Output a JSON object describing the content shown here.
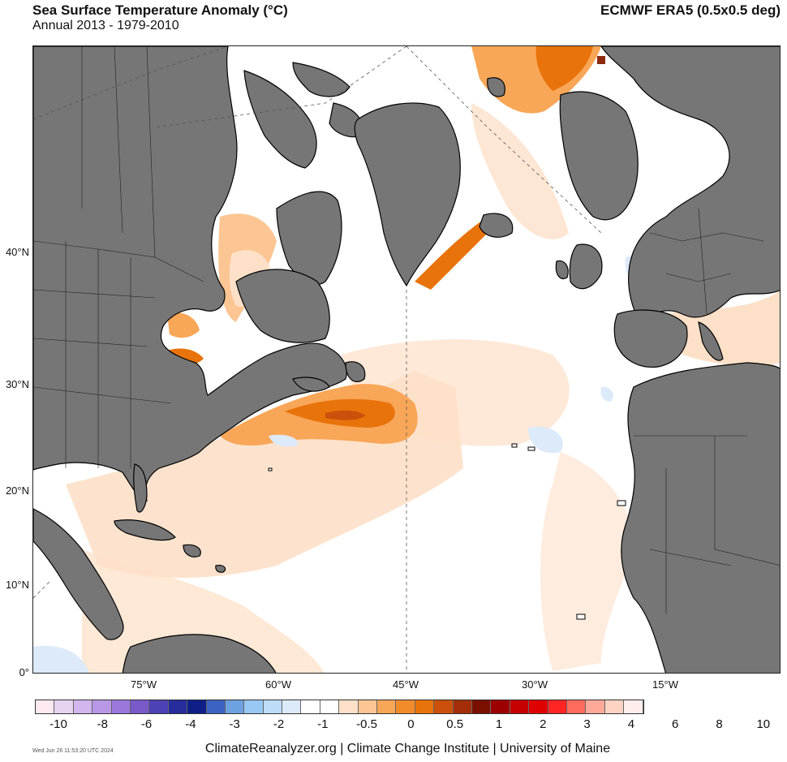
{
  "header": {
    "title": "Sea Surface Temperature Anomaly (°C)",
    "subtitle": "Annual 2013 - 1979-2010",
    "source": "ECMWF ERA5 (0.5x0.5 deg)"
  },
  "map": {
    "region": "North Atlantic",
    "lat_labels": [
      "40°N",
      "30°N",
      "20°N",
      "10°N",
      "0°"
    ],
    "lon_labels": [
      "75°W",
      "60°W",
      "45°W",
      "30°W",
      "15°W"
    ],
    "land_color": "#767676",
    "ocean_color": "#ffffff",
    "anomaly_colors": {
      "strong_warm": "#e8730a",
      "moderate_warm": "#f8a657",
      "weak_warm": "#fde0c8",
      "cool": "#dbeafa",
      "extreme": "#8c2a0d"
    }
  },
  "colorbar": {
    "colors": [
      "#fdeaf0",
      "#e6d3ef",
      "#d2b6ee",
      "#b997e7",
      "#9b77db",
      "#7a59c9",
      "#4c41b5",
      "#262c9c",
      "#0e1f87",
      "#3d63c2",
      "#6ea1e0",
      "#98c8f4",
      "#bcdcf8",
      "#dceafa",
      "#ffffff",
      "#ffffff",
      "#fde0c8",
      "#fbc693",
      "#f8a657",
      "#f28c2b",
      "#e8730a",
      "#cc500b",
      "#a32e08",
      "#7a0f00",
      "#9d0000",
      "#c60000",
      "#e00000",
      "#ff2525",
      "#ff6b5e",
      "#ffa999",
      "#ffd3c4",
      "#ffeeec"
    ],
    "ticks": [
      "-10",
      "-8",
      "-6",
      "-4",
      "-3",
      "-2",
      "-1",
      "-0.5",
      "0",
      "0.5",
      "1",
      "2",
      "3",
      "4",
      "6",
      "8",
      "10"
    ]
  },
  "footer": {
    "credit": "ClimateReanalyzer.org | Climate Change Institute | University of Maine",
    "timestamp": "Wed Jun 26 11:53:20 UTC 2024"
  }
}
